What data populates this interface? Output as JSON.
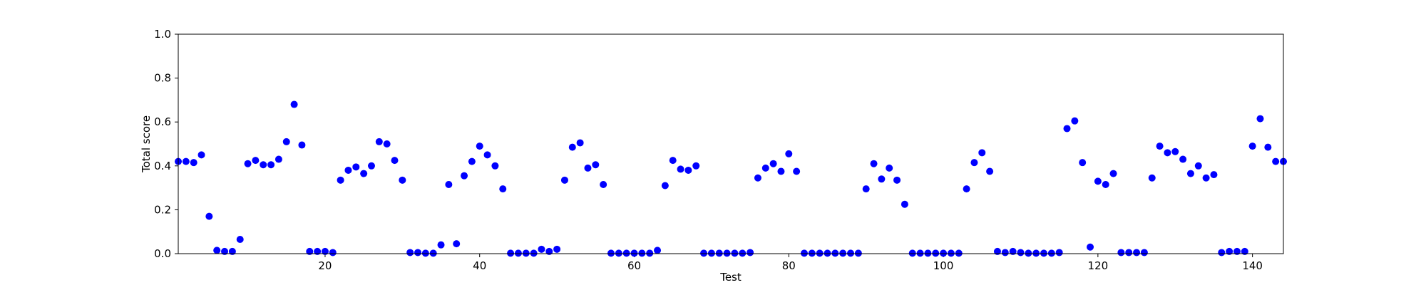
{
  "chart_data": {
    "type": "scatter",
    "title": "",
    "xlabel": "Test",
    "ylabel": "Total score",
    "xlim": [
      1,
      144
    ],
    "ylim": [
      0.0,
      1.0
    ],
    "xticks": [
      20,
      40,
      60,
      80,
      100,
      120,
      140
    ],
    "yticks": [
      0.0,
      0.2,
      0.4,
      0.6,
      0.8,
      1.0
    ],
    "ytick_labels": [
      "0.0",
      "0.2",
      "0.4",
      "0.6",
      "0.8",
      "1.0"
    ],
    "grid": false,
    "marker_color": "#0000ff",
    "series": [
      {
        "x": [
          1,
          2,
          3,
          4,
          5,
          6,
          7,
          8,
          9,
          10,
          11,
          12,
          13,
          14,
          15,
          16,
          17,
          18,
          19,
          20,
          21,
          22,
          23,
          24,
          25,
          26,
          27,
          28,
          29,
          30,
          31,
          32,
          33,
          34,
          35,
          36,
          37,
          38,
          39,
          40,
          41,
          42,
          43,
          44,
          45,
          46,
          47,
          48,
          49,
          50,
          51,
          52,
          53,
          54,
          55,
          56,
          57,
          58,
          59,
          60,
          61,
          62,
          63,
          64,
          65,
          66,
          67,
          68,
          69,
          70,
          71,
          72,
          73,
          74,
          75,
          76,
          77,
          78,
          79,
          80,
          81,
          82,
          83,
          84,
          85,
          86,
          87,
          88,
          89,
          90,
          91,
          92,
          93,
          94,
          95,
          96,
          97,
          98,
          99,
          100,
          101,
          102,
          103,
          104,
          105,
          106,
          107,
          108,
          109,
          110,
          111,
          112,
          113,
          114,
          115,
          116,
          117,
          118,
          119,
          120,
          121,
          122,
          123,
          124,
          125,
          126,
          127,
          128,
          129,
          130,
          131,
          132,
          133,
          134,
          135,
          136,
          137,
          138,
          139,
          140,
          141,
          142,
          143,
          144
        ],
        "y": [
          0.42,
          0.42,
          0.415,
          0.45,
          0.17,
          0.015,
          0.01,
          0.01,
          0.065,
          0.41,
          0.425,
          0.405,
          0.405,
          0.43,
          0.51,
          0.68,
          0.495,
          0.01,
          0.01,
          0.01,
          0.005,
          0.335,
          0.38,
          0.395,
          0.365,
          0.4,
          0.51,
          0.5,
          0.425,
          0.335,
          0.005,
          0.005,
          0.002,
          0.002,
          0.04,
          0.315,
          0.045,
          0.355,
          0.42,
          0.49,
          0.45,
          0.4,
          0.295,
          0.002,
          0.002,
          0.002,
          0.002,
          0.02,
          0.01,
          0.02,
          0.335,
          0.485,
          0.505,
          0.39,
          0.405,
          0.315,
          0.002,
          0.002,
          0.002,
          0.002,
          0.002,
          0.002,
          0.015,
          0.31,
          0.425,
          0.385,
          0.38,
          0.4,
          0.002,
          0.002,
          0.002,
          0.002,
          0.002,
          0.002,
          0.005,
          0.345,
          0.39,
          0.41,
          0.375,
          0.455,
          0.375,
          0.002,
          0.002,
          0.002,
          0.002,
          0.002,
          0.002,
          0.002,
          0.002,
          0.295,
          0.41,
          0.34,
          0.39,
          0.335,
          0.225,
          0.002,
          0.002,
          0.002,
          0.002,
          0.002,
          0.002,
          0.002,
          0.295,
          0.415,
          0.46,
          0.375,
          0.01,
          0.005,
          0.01,
          0.005,
          0.002,
          0.002,
          0.002,
          0.002,
          0.005,
          0.57,
          0.605,
          0.415,
          0.03,
          0.33,
          0.315,
          0.365,
          0.005,
          0.005,
          0.005,
          0.005,
          0.345,
          0.49,
          0.46,
          0.465,
          0.43,
          0.365,
          0.4,
          0.345,
          0.36,
          0.005,
          0.01,
          0.01,
          0.01,
          0.49,
          0.615,
          0.485,
          0.42,
          0.42
        ]
      }
    ]
  }
}
